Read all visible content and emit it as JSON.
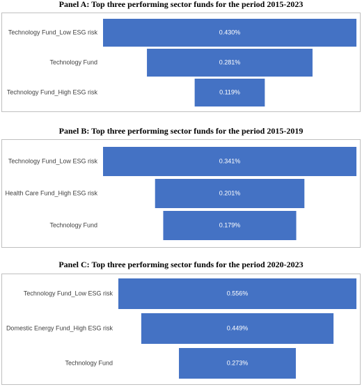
{
  "chart_data": [
    {
      "type": "funnel",
      "title": "Panel A: Top three performing sector funds for the period 2015-2023",
      "categories": [
        "Technology Fund_Low ESG risk",
        "Technology Fund",
        "Technology Fund_High ESG risk"
      ],
      "values": [
        0.43,
        0.281,
        0.119
      ],
      "value_labels": [
        "0.430%",
        "0.281%",
        "0.119%"
      ],
      "color": "#4472c4"
    },
    {
      "type": "funnel",
      "title": "Panel B: Top three performing sector funds for the period 2015-2019",
      "categories": [
        "Technology Fund_Low ESG risk",
        "Health Care Fund_High ESG risk",
        "Technology Fund"
      ],
      "values": [
        0.341,
        0.201,
        0.179
      ],
      "value_labels": [
        "0.341%",
        "0.201%",
        "0.179%"
      ],
      "color": "#4472c4"
    },
    {
      "type": "funnel",
      "title": "Panel C: Top three performing sector funds for the period 2020-2023",
      "categories": [
        "Technology Fund_Low ESG risk",
        "Domestic Energy Fund_High ESG risk",
        "Technology Fund"
      ],
      "values": [
        0.556,
        0.449,
        0.273
      ],
      "value_labels": [
        "0.556%",
        "0.449%",
        "0.273%"
      ],
      "color": "#4472c4"
    }
  ]
}
